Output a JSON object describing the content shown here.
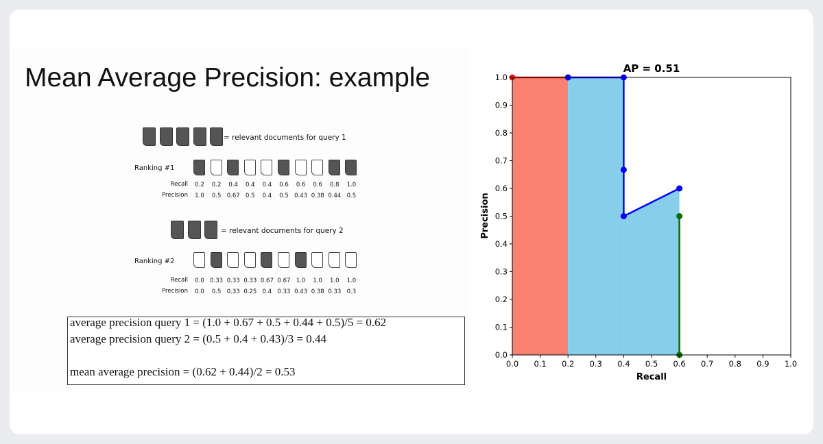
{
  "slide": {
    "title": "Mean Average Precision: example",
    "query1_legend": "= relevant documents for query 1",
    "query2_legend": "= relevant documents for query 2",
    "ranking1": {
      "label": "Ranking #1",
      "relevance": [
        1,
        0,
        1,
        0,
        0,
        1,
        0,
        0,
        1,
        1
      ],
      "recall_label": "Recall",
      "precision_label": "Precision",
      "recall": [
        "0.2",
        "0.2",
        "0.4",
        "0.4",
        "0.4",
        "0.6",
        "0.6",
        "0.6",
        "0.8",
        "1.0"
      ],
      "precision": [
        "1.0",
        "0.5",
        "0.67",
        "0.5",
        "0.4",
        "0.5",
        "0.43",
        "0.38",
        "0.44",
        "0.5"
      ]
    },
    "ranking2": {
      "label": "Ranking #2",
      "relevance": [
        0,
        1,
        0,
        0,
        1,
        0,
        1,
        0,
        0,
        0
      ],
      "recall_label": "Recall",
      "precision_label": "Precision",
      "recall": [
        "0.0",
        "0.33",
        "0.33",
        "0.33",
        "0.67",
        "0.67",
        "1.0",
        "1.0",
        "1.0",
        "1.0"
      ],
      "precision": [
        "0.0",
        "0.5",
        "0.33",
        "0.25",
        "0.4",
        "0.33",
        "0.43",
        "0.38",
        "0.33",
        "0.3"
      ]
    },
    "formulas": {
      "ap1": "average precision query 1 = (1.0 + 0.67 + 0.5 + 0.44 + 0.5)/5 = 0.62",
      "ap2": "average precision query 2 = (0.5 + 0.4 + 0.43)/3 = 0.44",
      "map": "mean average precision = (0.62 + 0.44)/2 = 0.53"
    }
  },
  "chart_data": {
    "type": "area",
    "title": "AP = 0.51",
    "xlabel": "Recall",
    "ylabel": "Precision",
    "xlim": [
      0.0,
      1.0
    ],
    "ylim": [
      0.0,
      1.0
    ],
    "xticks": [
      "0.0",
      "0.1",
      "0.2",
      "0.3",
      "0.4",
      "0.5",
      "0.6",
      "0.7",
      "0.8",
      "0.9",
      "1.0"
    ],
    "yticks": [
      "0.0",
      "0.1",
      "0.2",
      "0.3",
      "0.4",
      "0.5",
      "0.6",
      "0.7",
      "0.8",
      "0.9",
      "1.0"
    ],
    "grid": false,
    "regions": [
      {
        "x": [
          0.0,
          0.2
        ],
        "y": 1.0,
        "color": "#fa8072"
      },
      {
        "x": [
          0.2,
          0.4
        ],
        "y": 1.0,
        "color": "#87ceeb"
      },
      {
        "polygon": [
          [
            0.4,
            0.5
          ],
          [
            0.6,
            0.6
          ],
          [
            0.6,
            0.0
          ],
          [
            0.4,
            0.0
          ]
        ],
        "color": "#87ceeb"
      }
    ],
    "series": [
      {
        "color": "#e31a1c",
        "points": [
          [
            0.0,
            1.0
          ],
          [
            0.2,
            1.0
          ]
        ]
      },
      {
        "color": "#0000ff",
        "points": [
          [
            0.2,
            1.0
          ],
          [
            0.4,
            1.0
          ],
          [
            0.4,
            0.667
          ],
          [
            0.4,
            0.5
          ],
          [
            0.6,
            0.6
          ]
        ]
      },
      {
        "color": "#007000",
        "points": [
          [
            0.6,
            0.5
          ],
          [
            0.6,
            0.0
          ]
        ]
      }
    ]
  }
}
